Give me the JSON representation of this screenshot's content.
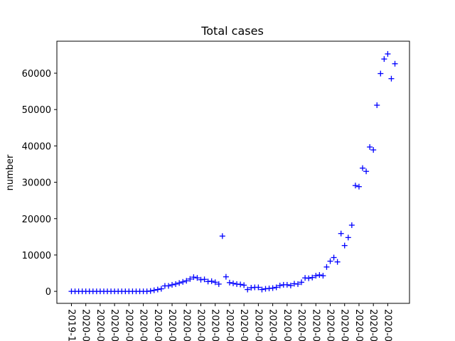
{
  "chart_data": {
    "type": "scatter",
    "title": "Total cases",
    "xlabel": "",
    "ylabel": "number",
    "marker": "+",
    "marker_color": "#0000ff",
    "ylim": [
      -3300,
      68800
    ],
    "yticks": [
      0,
      10000,
      20000,
      30000,
      40000,
      50000,
      60000
    ],
    "ytick_labels": [
      "0",
      "10000",
      "20000",
      "30000",
      "40000",
      "50000",
      "60000"
    ],
    "xtick_labels": [
      "2019-1",
      "2020-0",
      "2020-0",
      "2020-0",
      "2020-0",
      "2020-0",
      "2020-0",
      "2020-0",
      "2020-0",
      "2020-0",
      "2020-0",
      "2020-0",
      "2020-0",
      "2020-0",
      "2020-0",
      "2020-0",
      "2020-0",
      "2020-0",
      "2020-0",
      "2020-0",
      "2020-0",
      "2020-0",
      "2020-0"
    ],
    "values": [
      0,
      0,
      0,
      0,
      0,
      0,
      0,
      0,
      0,
      0,
      0,
      0,
      0,
      0,
      0,
      0,
      0,
      0,
      0,
      0,
      0,
      0,
      100,
      300,
      500,
      700,
      1500,
      1500,
      1800,
      2000,
      2300,
      2600,
      2900,
      3400,
      3900,
      3700,
      3200,
      3300,
      2700,
      2800,
      2500,
      2000,
      15200,
      4000,
      2400,
      2200,
      2000,
      1900,
      1700,
      500,
      1000,
      1100,
      1100,
      500,
      700,
      800,
      900,
      1100,
      1600,
      1800,
      1800,
      1600,
      2100,
      2000,
      2500,
      3700,
      3600,
      3800,
      4300,
      4500,
      4300,
      6700,
      8300,
      9300,
      8100,
      15900,
      12600,
      14800,
      18200,
      29100,
      28800,
      33900,
      33000,
      39700,
      38900,
      51200,
      59900,
      63900,
      65300,
      58500,
      62600
    ],
    "grid": false,
    "legend": "none"
  }
}
